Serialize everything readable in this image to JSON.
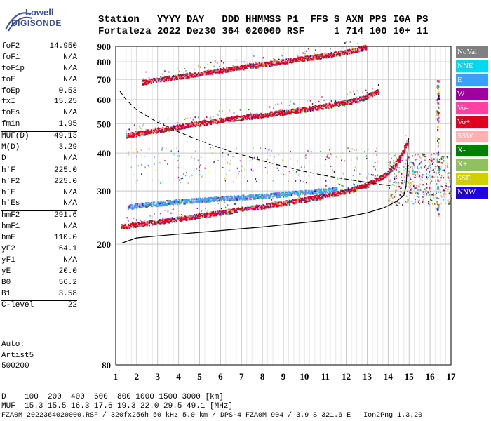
{
  "logo": {
    "top": "Lowell",
    "main": "DIGISONDE"
  },
  "header": {
    "line1": [
      "Station",
      "YYYY DAY",
      "DDD HHMMSS P1",
      "FFS S AXN PPS IGA PS"
    ],
    "line1_text": "Station   YYYY DAY   DDD HHMMSS P1  FFS S AXN PPS IGA PS",
    "line2_text": "Fortaleza 2022 Dez30 364 020000 RSF     1 714 100 10+ 11"
  },
  "params": {
    "group1": [
      [
        "foF2",
        "14.950"
      ],
      [
        "foF1",
        "N/A"
      ],
      [
        "foF1p",
        "N/A"
      ],
      [
        "foE",
        "N/A"
      ],
      [
        "foEp",
        "0.53"
      ],
      [
        "fxI",
        "15.25"
      ],
      [
        "foEs",
        "N/A"
      ],
      [
        "fmin",
        "1.95"
      ]
    ],
    "group2": [
      [
        "MUF(D)",
        "49.13"
      ],
      [
        "M(D)",
        "3.29"
      ],
      [
        "D",
        "N/A"
      ]
    ],
    "group3": [
      [
        "h`F",
        "225.0"
      ],
      [
        "h`F2",
        "225.0"
      ],
      [
        "h`E",
        "N/A"
      ],
      [
        "h`Es",
        "N/A"
      ]
    ],
    "group4": [
      [
        "hmF2",
        "291.6"
      ],
      [
        "hmF1",
        "N/A"
      ],
      [
        "hmE",
        "110.0"
      ],
      [
        "yF2",
        "64.1"
      ],
      [
        "yF1",
        "N/A"
      ],
      [
        "yE",
        "20.0"
      ],
      [
        "B0",
        "56.2"
      ],
      [
        "B1",
        "3.58"
      ]
    ],
    "group5": [
      [
        "C-level",
        "22"
      ]
    ]
  },
  "auto": [
    "Auto:",
    "Artist5",
    "500200"
  ],
  "footer": {
    "d_row": "D    100  200  400  600  800 1000 1500 3000 [km]",
    "muf_row": "MUF  15.3 15.5 16.3 17.6 19.3 22.0 29.5 49.1 [MHz]",
    "file_row": "FZA0M_2022364020000.RSF / 320fx256h 50 kHz 5.0 km / DPS-4 FZA0M 904 / 3.9 S 321.6 E   Ion2Png 1.3.20"
  },
  "legend": [
    {
      "label": "NoVal",
      "color": "#808080"
    },
    {
      "label": "NNE",
      "color": "#00d8f0"
    },
    {
      "label": "E",
      "color": "#3aa0ff"
    },
    {
      "label": "W",
      "color": "#a000a0"
    },
    {
      "label": "Vo-",
      "color": "#ff40a0"
    },
    {
      "label": "Vo+",
      "color": "#e00020"
    },
    {
      "label": "SSW",
      "color": "#ffb0b0"
    },
    {
      "label": "X-",
      "color": "#008000"
    },
    {
      "label": "X+",
      "color": "#90c060"
    },
    {
      "label": "SSE",
      "color": "#d0d000"
    },
    {
      "label": "NNW",
      "color": "#2000e0"
    }
  ],
  "chart_data": {
    "type": "scatter",
    "title": "",
    "xlabel": "",
    "ylabel": "",
    "xlim": [
      1,
      17
    ],
    "ylim": [
      80,
      900
    ],
    "y_scale": "log",
    "x_ticks": [
      1,
      2,
      3,
      4,
      5,
      6,
      7,
      8,
      9,
      10,
      11,
      12,
      13,
      14,
      15,
      16,
      17
    ],
    "y_ticks": [
      80,
      200,
      300,
      400,
      500,
      600,
      700,
      800,
      900
    ],
    "grid": true,
    "traces": [
      {
        "name": "F2 O-trace",
        "color": "#e00020",
        "points": [
          [
            1.3,
            228
          ],
          [
            2,
            232
          ],
          [
            3,
            237
          ],
          [
            4,
            242
          ],
          [
            5,
            248
          ],
          [
            6,
            254
          ],
          [
            7,
            260
          ],
          [
            8,
            266
          ],
          [
            9,
            273
          ],
          [
            10,
            280
          ],
          [
            11,
            288
          ],
          [
            12,
            298
          ],
          [
            13,
            313
          ],
          [
            13.8,
            335
          ],
          [
            14.3,
            360
          ],
          [
            14.7,
            400
          ],
          [
            14.95,
            440
          ]
        ]
      },
      {
        "name": "F2 O-trace 2nd hop",
        "color": "#e00020",
        "points": [
          [
            1.5,
            456
          ],
          [
            2,
            462
          ],
          [
            3,
            474
          ],
          [
            4,
            487
          ],
          [
            5,
            500
          ],
          [
            6,
            512
          ],
          [
            7,
            522
          ],
          [
            8,
            533
          ],
          [
            9,
            544
          ],
          [
            10,
            556
          ],
          [
            11,
            570
          ],
          [
            12,
            586
          ],
          [
            12.6,
            600
          ],
          [
            13,
            612
          ],
          [
            13.6,
            640
          ]
        ]
      },
      {
        "name": "F2 O-trace 3rd hop",
        "color": "#e00020",
        "points": [
          [
            2.3,
            683
          ],
          [
            3,
            697
          ],
          [
            4,
            713
          ],
          [
            5,
            730
          ],
          [
            6,
            747
          ],
          [
            7,
            765
          ],
          [
            8,
            782
          ],
          [
            9,
            800
          ],
          [
            10,
            818
          ],
          [
            11,
            838
          ],
          [
            12,
            860
          ],
          [
            12.5,
            875
          ],
          [
            13,
            895
          ]
        ]
      },
      {
        "name": "E multipath",
        "color": "#3aa0ff",
        "points": [
          [
            1.6,
            265
          ],
          [
            2,
            268
          ],
          [
            3,
            272
          ],
          [
            4,
            276
          ],
          [
            5,
            279
          ],
          [
            6,
            282
          ],
          [
            7,
            285
          ],
          [
            8,
            288
          ],
          [
            9,
            292
          ],
          [
            10,
            296
          ],
          [
            11,
            300
          ],
          [
            11.6,
            303
          ]
        ]
      }
    ],
    "profile_solid": [
      [
        1.3,
        202
      ],
      [
        2,
        210
      ],
      [
        3,
        213
      ],
      [
        4,
        216
      ],
      [
        5,
        219
      ],
      [
        6,
        222
      ],
      [
        7,
        225
      ],
      [
        8,
        228
      ],
      [
        9,
        232
      ],
      [
        10,
        236
      ],
      [
        11,
        240
      ],
      [
        12,
        246
      ],
      [
        13,
        254
      ],
      [
        13.8,
        264
      ],
      [
        14.4,
        277
      ],
      [
        14.75,
        290
      ],
      [
        14.85,
        310
      ],
      [
        14.9,
        350
      ],
      [
        14.95,
        420
      ],
      [
        14.97,
        450
      ]
    ],
    "profile_dashed": [
      [
        1.2,
        640
      ],
      [
        1.5,
        600
      ],
      [
        2,
        555
      ],
      [
        3,
        505
      ],
      [
        4,
        470
      ],
      [
        5,
        440
      ],
      [
        6,
        415
      ],
      [
        7,
        395
      ],
      [
        8,
        377
      ],
      [
        9,
        362
      ],
      [
        10,
        348
      ],
      [
        11,
        337
      ],
      [
        12,
        328
      ],
      [
        13,
        320
      ],
      [
        13.8,
        314
      ],
      [
        14.2,
        312
      ]
    ]
  }
}
